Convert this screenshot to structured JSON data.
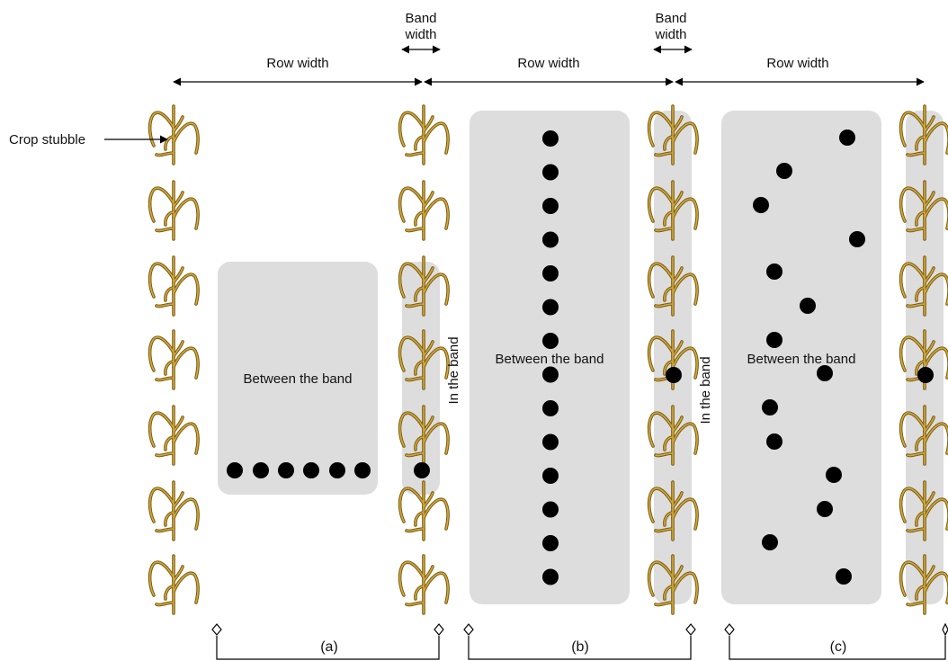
{
  "labels": {
    "row_width": "Row width",
    "band_width_line1": "Band",
    "band_width_line2": "width",
    "crop_stubble": "Crop stubble",
    "between_band": "Between the band",
    "in_band": "In the band"
  },
  "panels": [
    {
      "id": "a",
      "label": "(a)",
      "pattern": "between-row horizontal line plus one point in the band"
    },
    {
      "id": "b",
      "label": "(b)",
      "pattern": "straight line of points down the middle plus one point in the band"
    },
    {
      "id": "c",
      "label": "(c)",
      "pattern": "random points in the between-band area plus one point in the band"
    }
  ],
  "colors": {
    "region_fill": "#dddddd",
    "point": "#000000",
    "stubble_stroke": "#8a6a14",
    "stubble_fill": "#c9a232",
    "arrow": "#000000"
  },
  "icons": {
    "plant": "crop-stubble-plant-icon",
    "point": "sample-point"
  }
}
